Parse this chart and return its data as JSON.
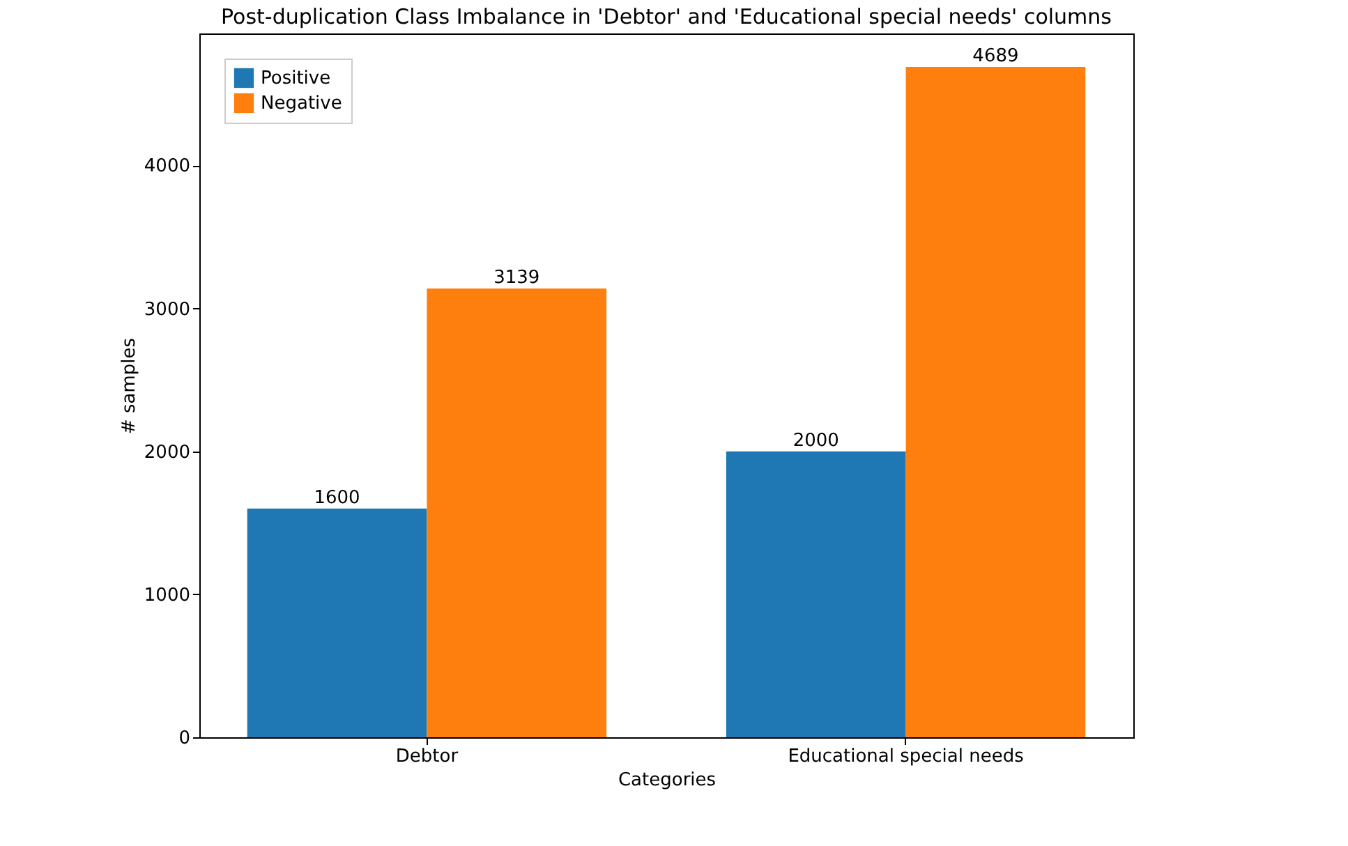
{
  "chart_data": {
    "type": "bar",
    "title": "Post-duplication Class Imbalance in 'Debtor' and 'Educational special needs' columns",
    "xlabel": "Categories",
    "ylabel": "# samples",
    "categories": [
      "Debtor",
      "Educational special needs"
    ],
    "series": [
      {
        "name": "Positive",
        "color": "#1f77b4",
        "values": [
          1600,
          2000
        ]
      },
      {
        "name": "Negative",
        "color": "#ff7f0e",
        "values": [
          3139,
          4689
        ]
      }
    ],
    "ylim": [
      0,
      4923
    ],
    "yticks": [
      0,
      1000,
      2000,
      3000,
      4000
    ],
    "grid": false,
    "legend": "top left",
    "data_labels": true
  }
}
